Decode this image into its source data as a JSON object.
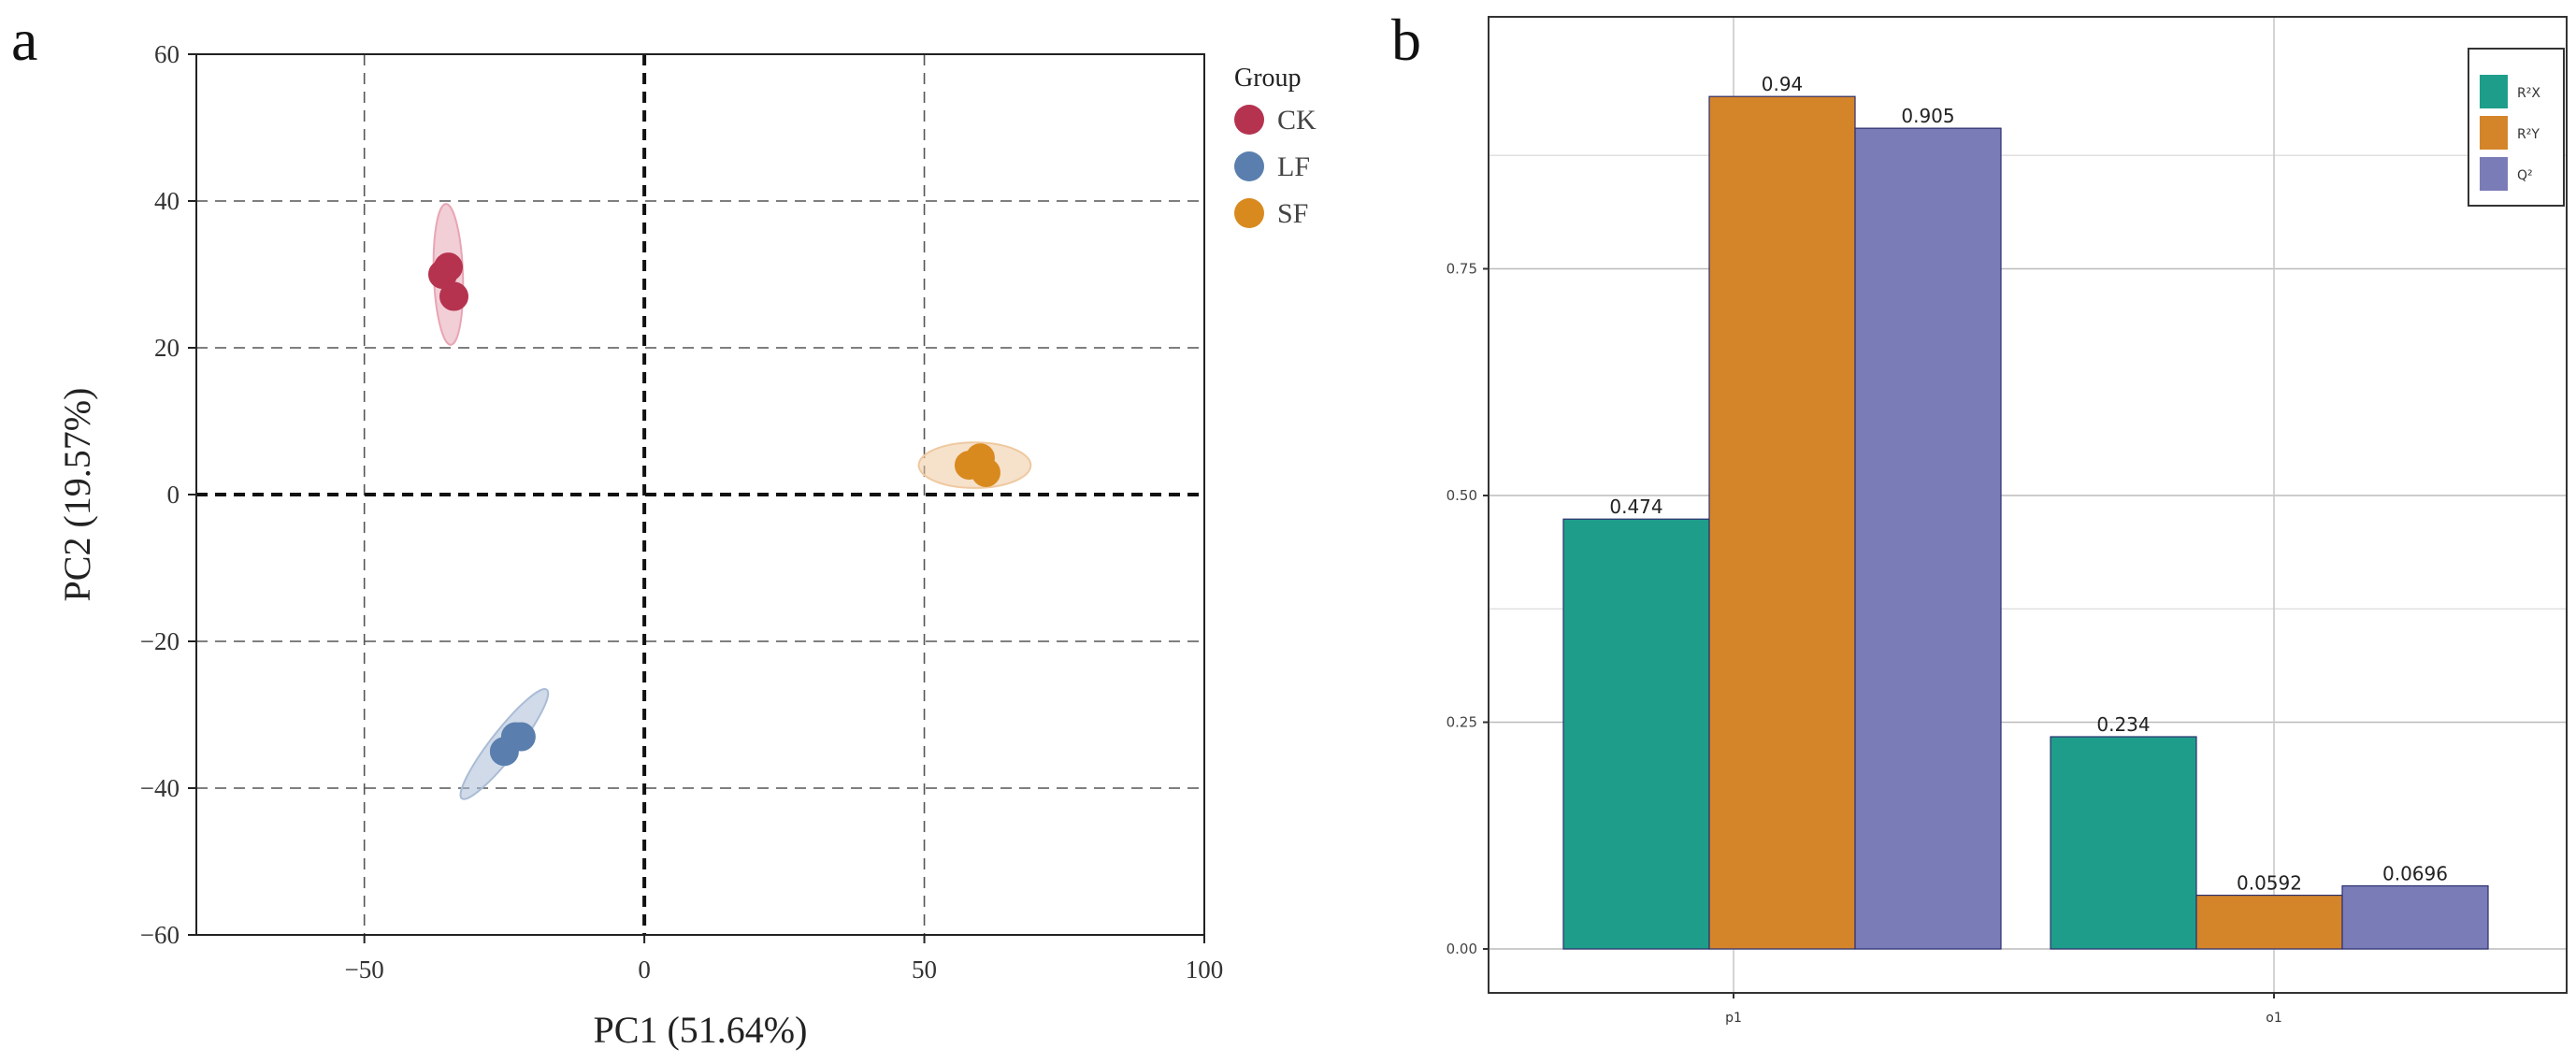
{
  "chart_data": [
    {
      "panel": "a",
      "type": "scatter",
      "title": "",
      "xlabel": "PC1 (51.64%)",
      "ylabel": "PC2 (19.57%)",
      "xlim": [
        -80,
        100
      ],
      "ylim": [
        -60,
        60
      ],
      "xticks": [
        -50,
        0,
        50,
        100
      ],
      "yticks": [
        -60,
        -40,
        -20,
        0,
        20,
        40,
        60
      ],
      "xtick_labels": [
        "−50",
        "0",
        "50",
        "100"
      ],
      "ytick_labels": [
        "−60",
        "−40",
        "−20",
        "0",
        "20",
        "40",
        "60"
      ],
      "grid": true,
      "legend_title": "Group",
      "legend_position": "top-right outside",
      "series": [
        {
          "name": "CK",
          "color": "#b5334f",
          "ellipse_color": "#e8a5b5",
          "points": [
            [
              -36,
              30
            ],
            [
              -35,
              31
            ],
            [
              -34,
              27
            ]
          ],
          "ellipse": {
            "cx": -35,
            "cy": 30,
            "rx": 2.6,
            "ry": 9.6,
            "tilt_deg": -2
          }
        },
        {
          "name": "LF",
          "color": "#5a7fae",
          "ellipse_color": "#aabcd6",
          "points": [
            [
              -25,
              -35
            ],
            [
              -23,
              -33
            ],
            [
              -22,
              -33
            ]
          ],
          "ellipse": {
            "cx": -25,
            "cy": -34,
            "rx": 2.4,
            "ry": 9.4,
            "tilt_deg": 38
          }
        },
        {
          "name": "SF",
          "color": "#d98a1e",
          "ellipse_color": "#efc9a0",
          "points": [
            [
              58,
              4
            ],
            [
              60,
              5
            ],
            [
              61,
              3
            ]
          ],
          "ellipse": {
            "cx": 59,
            "cy": 4,
            "rx": 10,
            "ry": 3.1,
            "tilt_deg": 0
          }
        }
      ]
    },
    {
      "panel": "b",
      "type": "bar",
      "title": "",
      "xlabel": "",
      "ylabel": "",
      "categories": [
        "p1",
        "o1"
      ],
      "ylim": [
        0,
        1
      ],
      "yticks": [
        0,
        0.25,
        0.5,
        0.75
      ],
      "ytick_labels": [
        "0.00",
        "0.25",
        "0.50",
        "0.75"
      ],
      "grid": true,
      "legend_position": "top-right",
      "series": [
        {
          "name": "R²X",
          "color": "#1e9e8a",
          "values": [
            0.474,
            0.234
          ],
          "labels": [
            "0.474",
            "0.234"
          ]
        },
        {
          "name": "R²Y",
          "color": "#d4852a",
          "values": [
            0.94,
            0.0592
          ],
          "labels": [
            "0.94",
            "0.0592"
          ]
        },
        {
          "name": "Q²",
          "color": "#7a7cb8",
          "values": [
            0.905,
            0.0696
          ],
          "labels": [
            "0.905",
            "0.0696"
          ]
        }
      ]
    }
  ]
}
